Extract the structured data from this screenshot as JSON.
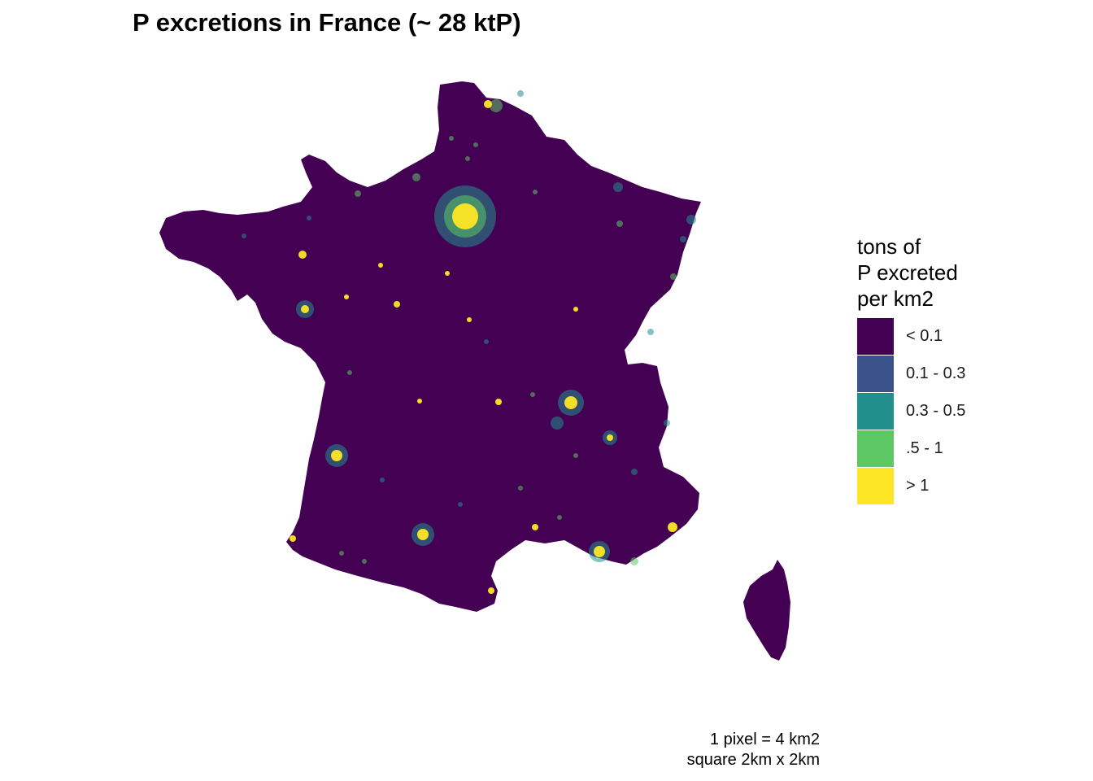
{
  "title": "P excretions in France (~ 28 ktP)",
  "legend": {
    "title_lines": [
      "tons of",
      "P excreted",
      "per km2"
    ],
    "items": [
      {
        "label": "< 0.1",
        "color": "#440154"
      },
      {
        "label": "0.1 - 0.3",
        "color": "#3B528B"
      },
      {
        "label": "0.3 - 0.5",
        "color": "#21908C"
      },
      {
        "label": ".5 - 1",
        "color": "#5DC863"
      },
      {
        "label": "> 1",
        "color": "#FDE725"
      }
    ]
  },
  "caption": {
    "line1": "1 pixel = 4 km2",
    "line2": "square 2km x 2km"
  },
  "colors": {
    "base": "#440154",
    "background": "#ffffff"
  }
}
